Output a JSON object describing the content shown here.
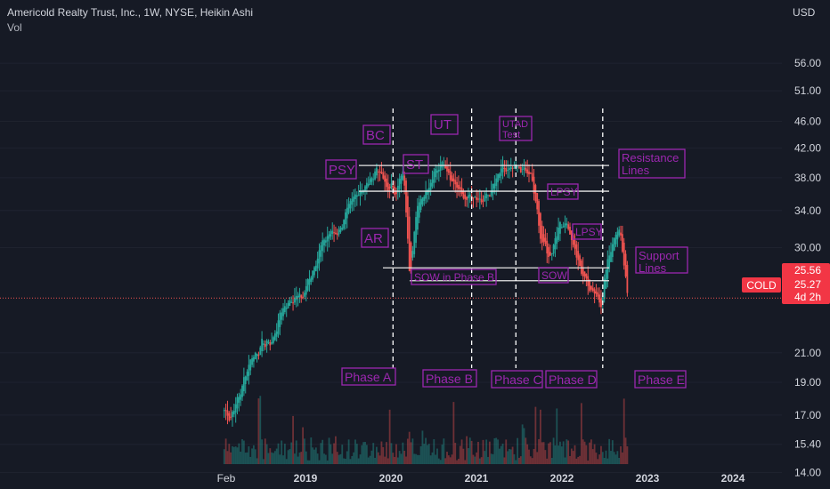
{
  "header": {
    "title": "Americold Realty Trust, Inc., 1W, NYSE, Heikin Ashi",
    "volume_label": "Vol",
    "currency": "USD"
  },
  "colors": {
    "background": "#161a25",
    "up": "#26a69a",
    "down": "#ef5350",
    "annotation": "#9c27b0",
    "price_badge": "#f23645",
    "axis_text": "#d1d4dc"
  },
  "price_axis": {
    "scale": "log",
    "ticks": [
      "56.00",
      "51.00",
      "46.00",
      "42.00",
      "38.00",
      "34.00",
      "30.00",
      "25.56",
      "21.00",
      "19.00",
      "17.00",
      "15.40",
      "14.00"
    ],
    "range": [
      13.6,
      63
    ]
  },
  "time_axis": {
    "ticks": [
      "Feb",
      "2019",
      "2020",
      "2021",
      "2022",
      "2023",
      "2024"
    ]
  },
  "price_badges": {
    "ticker": "COLD",
    "last_price": "25.56",
    "current_price": "25.27",
    "countdown": "4d 2h"
  },
  "annotations": {
    "phases": [
      "Phase A",
      "Phase B",
      "Phase C",
      "Phase D",
      "Phase E"
    ],
    "events": [
      "PSY",
      "BC",
      "AR",
      "ST",
      "UT",
      "UTAD Test",
      "SOW in Phase B",
      "LPSY",
      "LPSY",
      "SOW"
    ],
    "line_labels": [
      "Resistance Lines",
      "Support Lines"
    ]
  },
  "chart_data": {
    "type": "candlestick",
    "chart_style": "Heikin Ashi",
    "interval": "1W",
    "symbol": "COLD",
    "y_scale": "log",
    "ylim": [
      13.6,
      63
    ],
    "x_ticks": [
      "Feb",
      "2019",
      "2020",
      "2021",
      "2022",
      "2023",
      "2024"
    ],
    "close_path": [
      {
        "date": "2018-01-19",
        "close": 17.3
      },
      {
        "date": "2018-02-09",
        "close": 16.9
      },
      {
        "date": "2018-03-23",
        "close": 18.2
      },
      {
        "date": "2018-05-04",
        "close": 20.5
      },
      {
        "date": "2018-06-29",
        "close": 21.6
      },
      {
        "date": "2018-08-10",
        "close": 21.8
      },
      {
        "date": "2018-09-21",
        "close": 24.5
      },
      {
        "date": "2018-11-09",
        "close": 25.3
      },
      {
        "date": "2018-12-21",
        "close": 25.5
      },
      {
        "date": "2019-01-11",
        "close": 26.9
      },
      {
        "date": "2019-02-22",
        "close": 29.5
      },
      {
        "date": "2019-04-05",
        "close": 31.4
      },
      {
        "date": "2019-05-17",
        "close": 31.7
      },
      {
        "date": "2019-06-28",
        "close": 33.8
      },
      {
        "date": "2019-08-09",
        "close": 36.4
      },
      {
        "date": "2019-09-20",
        "close": 37.0
      },
      {
        "date": "2019-11-01",
        "close": 39.5
      },
      {
        "date": "2019-12-06",
        "close": 36.8
      },
      {
        "date": "2020-01-17",
        "close": 36.5
      },
      {
        "date": "2020-02-21",
        "close": 38.5
      },
      {
        "date": "2020-03-20",
        "close": 27.0
      },
      {
        "date": "2020-04-03",
        "close": 31.5
      },
      {
        "date": "2020-05-01",
        "close": 35.5
      },
      {
        "date": "2020-06-05",
        "close": 37.0
      },
      {
        "date": "2020-07-10",
        "close": 39.5
      },
      {
        "date": "2020-08-07",
        "close": 40.5
      },
      {
        "date": "2020-09-18",
        "close": 37.5
      },
      {
        "date": "2020-10-30",
        "close": 35.5
      },
      {
        "date": "2020-12-18",
        "close": 36.2
      },
      {
        "date": "2021-01-22",
        "close": 35.0
      },
      {
        "date": "2021-03-05",
        "close": 36.5
      },
      {
        "date": "2021-04-16",
        "close": 39.0
      },
      {
        "date": "2021-05-28",
        "close": 38.7
      },
      {
        "date": "2021-07-09",
        "close": 39.2
      },
      {
        "date": "2021-08-20",
        "close": 38.0
      },
      {
        "date": "2021-10-01",
        "close": 30.8
      },
      {
        "date": "2021-11-05",
        "close": 29.0
      },
      {
        "date": "2021-12-10",
        "close": 32.0
      },
      {
        "date": "2022-01-14",
        "close": 33.0
      },
      {
        "date": "2022-02-25",
        "close": 29.2
      },
      {
        "date": "2022-04-08",
        "close": 26.8
      },
      {
        "date": "2022-05-13",
        "close": 26.0
      },
      {
        "date": "2022-06-17",
        "close": 25.0
      },
      {
        "date": "2022-07-01",
        "close": 27.5
      },
      {
        "date": "2022-08-05",
        "close": 31.0
      },
      {
        "date": "2022-08-26",
        "close": 32.6
      },
      {
        "date": "2022-09-23",
        "close": 28.0
      },
      {
        "date": "2022-10-07",
        "close": 25.3
      }
    ],
    "horizontal_levels": {
      "resistance": [
        39.6,
        36.3
      ],
      "support": [
        28.0,
        26.8
      ],
      "last_price": 25.27
    },
    "phase_dividers": [
      "2020-01-10",
      "2020-12-11",
      "2021-06-18",
      "2022-06-24"
    ]
  }
}
